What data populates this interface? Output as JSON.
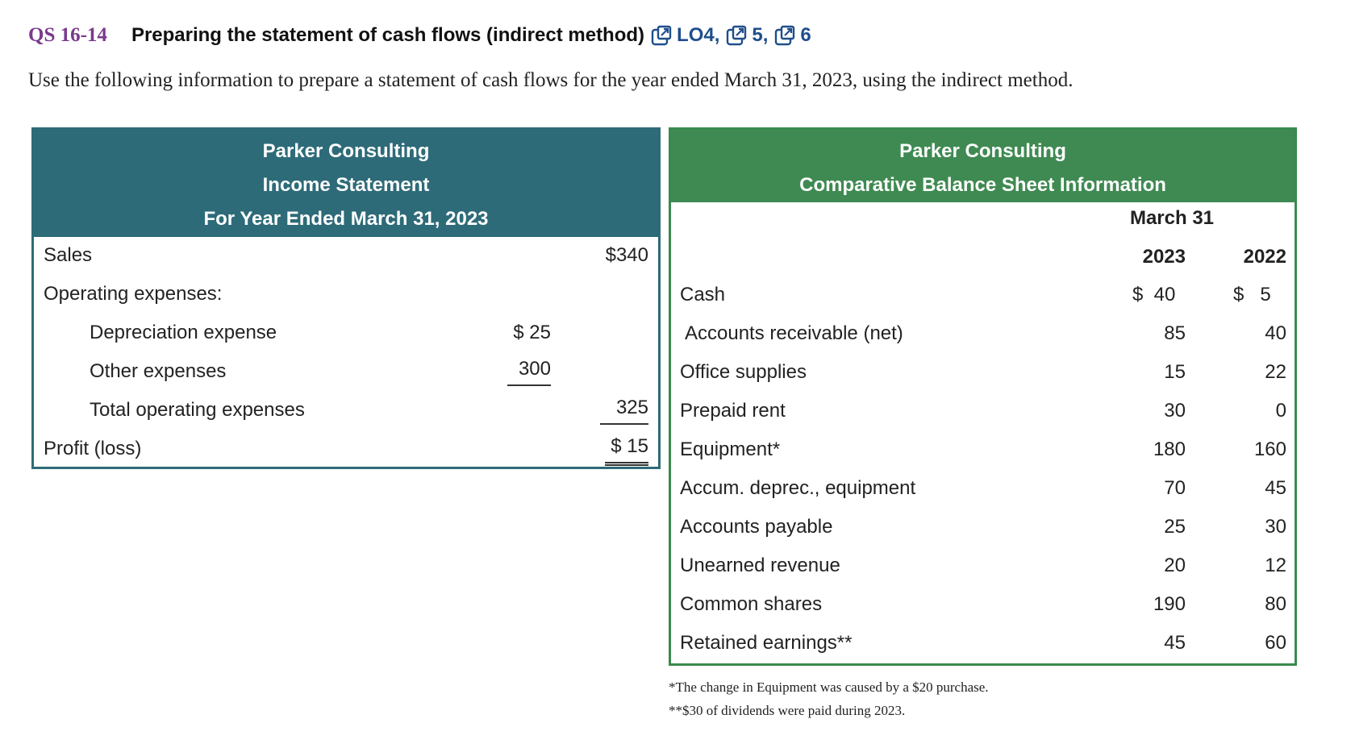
{
  "heading": {
    "qs_number": "QS 16-14",
    "title": "Preparing the statement of cash flows (indirect method)",
    "lo_links": [
      {
        "label": "LO4,",
        "icon": "external-link-icon"
      },
      {
        "label": "5,",
        "icon": "external-link-icon"
      },
      {
        "label": "6",
        "icon": "external-link-icon"
      }
    ]
  },
  "intro": "Use the following information to prepare a statement of cash flows for the year ended March 31, 2023, using the indirect method.",
  "income_statement": {
    "header": [
      "Parker Consulting",
      "Income Statement",
      "For Year Ended March 31, 2023"
    ],
    "rows": [
      {
        "label": "Sales",
        "inner": "",
        "outer": "$340"
      },
      {
        "label": "Operating expenses:",
        "inner": "",
        "outer": ""
      },
      {
        "label": "Depreciation expense",
        "inner": "$ 25",
        "outer": ""
      },
      {
        "label": "Other expenses",
        "inner": "300",
        "outer": ""
      },
      {
        "label": "Total operating expenses",
        "inner": "",
        "outer": "325"
      },
      {
        "label": "Profit (loss)",
        "inner": "",
        "outer": "$ 15"
      }
    ]
  },
  "balance_sheet": {
    "header": [
      "Parker Consulting",
      "Comparative Balance Sheet Information"
    ],
    "date_header": "March 31",
    "year_headers": [
      "2023",
      "2022"
    ],
    "rows": [
      {
        "label": "Cash",
        "y2023": "$  40",
        "y2022": "$   5"
      },
      {
        "label": "Accounts receivable (net)",
        "y2023": "85",
        "y2022": "40"
      },
      {
        "label": "Office supplies",
        "y2023": "15",
        "y2022": "22"
      },
      {
        "label": "Prepaid rent",
        "y2023": "30",
        "y2022": "0"
      },
      {
        "label": "Equipment*",
        "y2023": "180",
        "y2022": "160"
      },
      {
        "label": "Accum. deprec., equipment",
        "y2023": "70",
        "y2022": "45"
      },
      {
        "label": "Accounts payable",
        "y2023": "25",
        "y2022": "30"
      },
      {
        "label": "Unearned revenue",
        "y2023": "20",
        "y2022": "12"
      },
      {
        "label": "Common shares",
        "y2023": "190",
        "y2022": "80"
      },
      {
        "label": "Retained earnings**",
        "y2023": "45",
        "y2022": "60"
      }
    ]
  },
  "footnotes": [
    "*The change in Equipment was caused by a $20 purchase.",
    "**$30 of dividends were paid during 2023."
  ],
  "colors": {
    "income_header": "#2e6b78",
    "balance_header": "#3f8a52",
    "qs_number": "#7a3a8c",
    "lo_link": "#1f4e8c"
  }
}
